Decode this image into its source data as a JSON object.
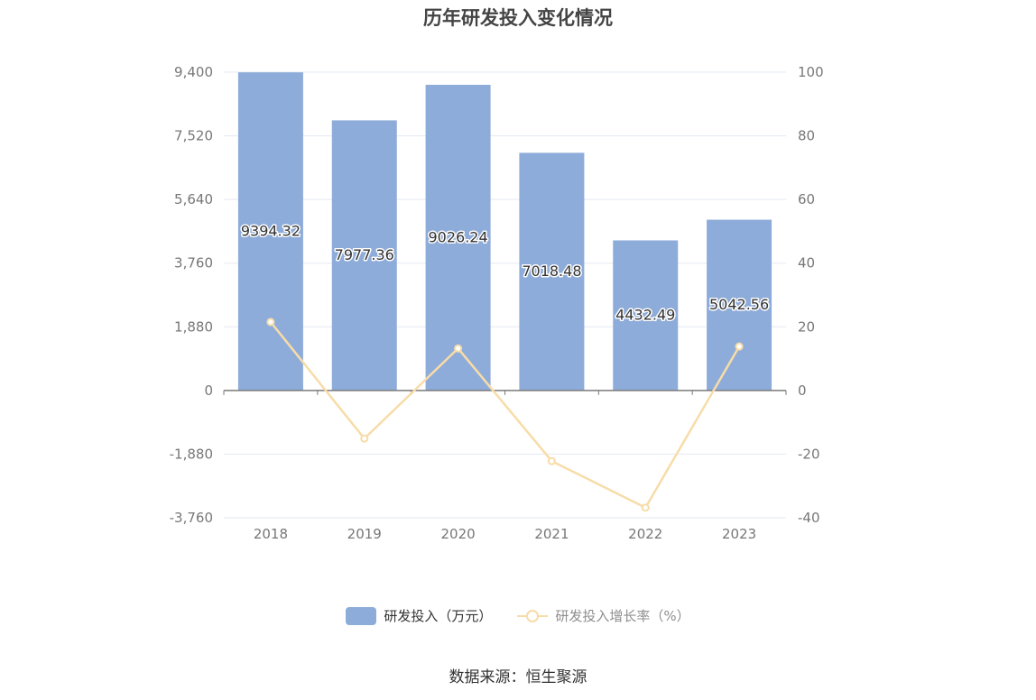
{
  "chart_data": {
    "type": "bar",
    "title": "历年研发投入变化情况",
    "categories": [
      "2018",
      "2019",
      "2020",
      "2021",
      "2022",
      "2023"
    ],
    "series": [
      {
        "name": "研发投入（万元）",
        "type": "bar",
        "axis": "left",
        "values": [
          9394.32,
          7977.36,
          9026.24,
          7018.48,
          4432.49,
          5042.56
        ],
        "labels": [
          "9394.32",
          "7977.36",
          "9026.24",
          "7018.48",
          "4432.49",
          "5042.56"
        ],
        "color": "#8eacd9"
      },
      {
        "name": "研发投入增长率（%）",
        "type": "line",
        "axis": "right",
        "values": [
          21.5,
          -15.1,
          13.2,
          -22.2,
          -36.8,
          13.8
        ],
        "color": "#f8dca8"
      }
    ],
    "y_left": {
      "ticks": [
        "9,400",
        "7,520",
        "5,640",
        "3,760",
        "1,880",
        "0",
        "-1,880",
        "-3,760"
      ],
      "tick_values": [
        9400,
        7520,
        5640,
        3760,
        1880,
        0,
        -1880,
        -3760
      ],
      "ylim": [
        -3760,
        9400
      ]
    },
    "y_right": {
      "ticks": [
        "100",
        "80",
        "60",
        "40",
        "20",
        "0",
        "-20",
        "-40"
      ],
      "tick_values": [
        100,
        80,
        60,
        40,
        20,
        0,
        -20,
        -40
      ],
      "ylim": [
        -40,
        100
      ]
    },
    "grid": true,
    "legend_position": "bottom"
  },
  "source": "数据来源：恒生聚源"
}
